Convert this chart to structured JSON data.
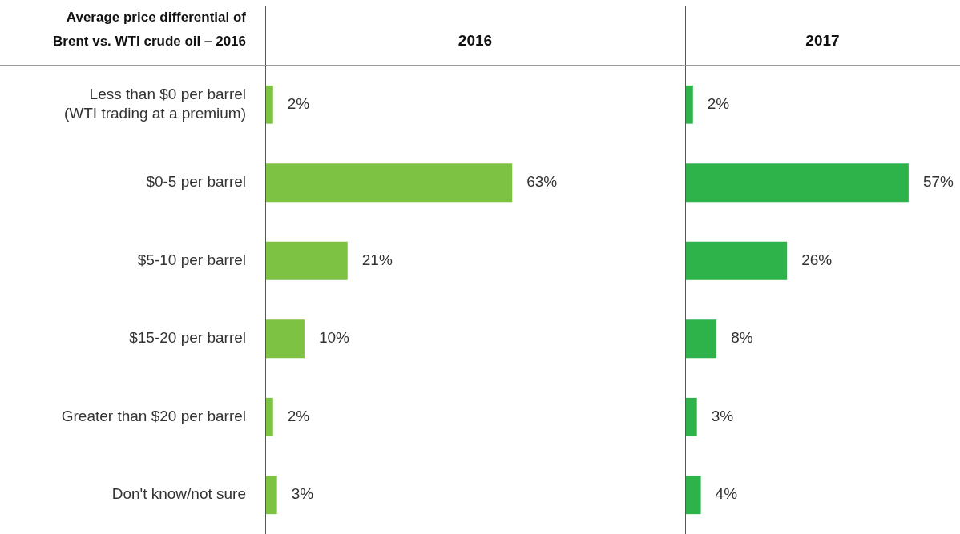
{
  "chart_data": [
    {
      "type": "bar",
      "orientation": "horizontal",
      "title": "2016",
      "ylabel": "Average price differential of Brent vs. WTI crude oil – 2016",
      "categories": [
        "Less than $0 per barrel (WTI trading at a premium)",
        "$0-5 per barrel",
        "$5-10 per barrel",
        "$15-20 per barrel",
        "Greater than $20 per barrel",
        "Don't know/not sure"
      ],
      "values": [
        2,
        63,
        21,
        10,
        2,
        3
      ],
      "value_labels": [
        "2%",
        "63%",
        "21%",
        "10%",
        "2%",
        "3%"
      ],
      "color": "#7dc242",
      "tick_labels": "y",
      "grid": false,
      "legend": false
    },
    {
      "type": "bar",
      "orientation": "horizontal",
      "title": "2017",
      "categories": [
        null,
        null,
        null,
        null,
        null,
        null
      ],
      "values": [
        2,
        57,
        26,
        8,
        3,
        4
      ],
      "value_labels": [
        "2%",
        "57%",
        "26%",
        "8%",
        "3%",
        "4%"
      ],
      "color": "#2db34a",
      "tick_labels": false,
      "grid": false,
      "legend": false
    }
  ]
}
